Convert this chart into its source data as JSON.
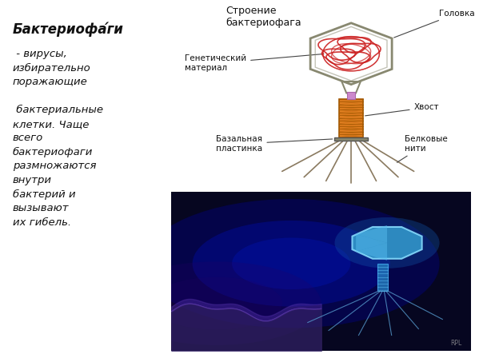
{
  "bg_color": "#ffffff",
  "title_text": "Бактериофа́ги",
  "body_text": " - вирусы,\nизбирательно\nпоражающие\n\n бактериальные\nклетки. Чаще\nвсего\nбактериофаги\nразмножаются\nвнутри\nбактерий и\nвызывают\nих гибель.",
  "diagram_title": "Строение\nбактериофага",
  "label_golovka": "Головка",
  "label_genetic": "Генетический\nматериал",
  "label_hvost": "Хвост",
  "label_bazalnaya": "Базальная\nпластинка",
  "label_belkovye": "Белковые\nнити",
  "head_border_color": "#888870",
  "dna_color": "#cc2222",
  "tail_color": "#e08020",
  "tail_border_color": "#a05800",
  "legs_color": "#8a7a60",
  "baseplate_color": "#888870",
  "neck_color": "#cc88cc",
  "text_color": "#111111",
  "label_color": "#111111"
}
